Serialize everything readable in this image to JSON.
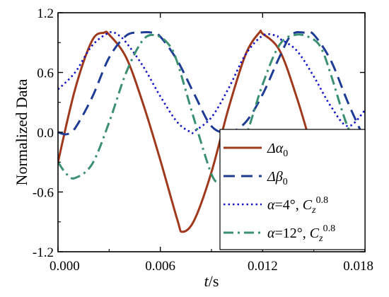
{
  "chart_data": {
    "type": "line",
    "xlabel": "t/s",
    "ylabel": "Normalized Data",
    "xlim": [
      0.0,
      0.018
    ],
    "ylim": [
      -1.2,
      1.2
    ],
    "x_ticks": [
      "0.000",
      "0.006",
      "0.012",
      "0.018"
    ],
    "x_tick_values": [
      0.0,
      0.006,
      0.012,
      0.018
    ],
    "y_ticks": [
      "1.2",
      "0.6",
      "0.0",
      "-0.6",
      "-1.2"
    ],
    "y_tick_values": [
      1.2,
      0.6,
      0.0,
      -0.6,
      -1.2
    ],
    "legend_position": "bottom-right",
    "series": [
      {
        "name": "Δα0",
        "color": "#a0391c",
        "style": "solid",
        "x": [
          0.0,
          0.001,
          0.002,
          0.0027,
          0.003,
          0.004,
          0.005,
          0.006,
          0.007,
          0.0073,
          0.008,
          0.009,
          0.01,
          0.011,
          0.0118,
          0.012,
          0.013,
          0.014,
          0.015,
          0.016,
          0.017,
          0.018
        ],
        "values": [
          -0.3,
          0.43,
          0.92,
          1.0,
          0.98,
          0.75,
          0.28,
          -0.28,
          -0.88,
          -1.0,
          -0.88,
          -0.4,
          0.24,
          0.78,
          1.0,
          0.99,
          0.82,
          0.35,
          -0.22,
          -0.75,
          -1.0,
          -0.45
        ]
      },
      {
        "name": "Δβ0",
        "color": "#1e3c96",
        "style": "dash",
        "x": [
          0.0,
          0.0005,
          0.001,
          0.002,
          0.003,
          0.004,
          0.0048,
          0.0055,
          0.006,
          0.007,
          0.008,
          0.009,
          0.01,
          0.011,
          0.012,
          0.013,
          0.0137,
          0.0145,
          0.015,
          0.016,
          0.017,
          0.018
        ],
        "values": [
          0.0,
          -0.02,
          0.04,
          0.35,
          0.75,
          0.97,
          1.0,
          1.0,
          0.96,
          0.72,
          0.38,
          0.06,
          0.0,
          0.1,
          0.38,
          0.76,
          0.98,
          1.0,
          0.98,
          0.72,
          0.3,
          -0.08
        ]
      },
      {
        "name": "α=4°, Cz0.8",
        "color": "#1414c8",
        "style": "dot",
        "x": [
          0.0,
          0.001,
          0.002,
          0.003,
          0.0035,
          0.004,
          0.005,
          0.006,
          0.007,
          0.0078,
          0.008,
          0.009,
          0.01,
          0.011,
          0.012,
          0.0128,
          0.013,
          0.014,
          0.015,
          0.016,
          0.017,
          0.018
        ],
        "values": [
          0.43,
          0.6,
          0.87,
          1.0,
          0.98,
          0.9,
          0.66,
          0.36,
          0.1,
          0.0,
          0.01,
          0.15,
          0.44,
          0.78,
          0.97,
          0.97,
          0.94,
          0.82,
          0.56,
          0.26,
          0.06,
          0.22
        ]
      },
      {
        "name": "α=12°, Cz0.8",
        "color": "#3a9070",
        "style": "dashdot",
        "x": [
          0.0,
          0.0005,
          0.001,
          0.002,
          0.003,
          0.004,
          0.005,
          0.0058,
          0.0065,
          0.007,
          0.008,
          0.009,
          0.0095,
          0.01,
          0.011,
          0.012,
          0.013,
          0.014,
          0.015,
          0.0155,
          0.016,
          0.017,
          0.018
        ],
        "values": [
          -0.3,
          -0.42,
          -0.46,
          -0.32,
          0.1,
          0.6,
          0.93,
          0.97,
          0.88,
          0.7,
          0.12,
          -0.42,
          -0.5,
          -0.45,
          -0.05,
          0.48,
          0.88,
          0.98,
          0.93,
          0.82,
          0.58,
          0.05,
          -0.25
        ]
      }
    ]
  }
}
